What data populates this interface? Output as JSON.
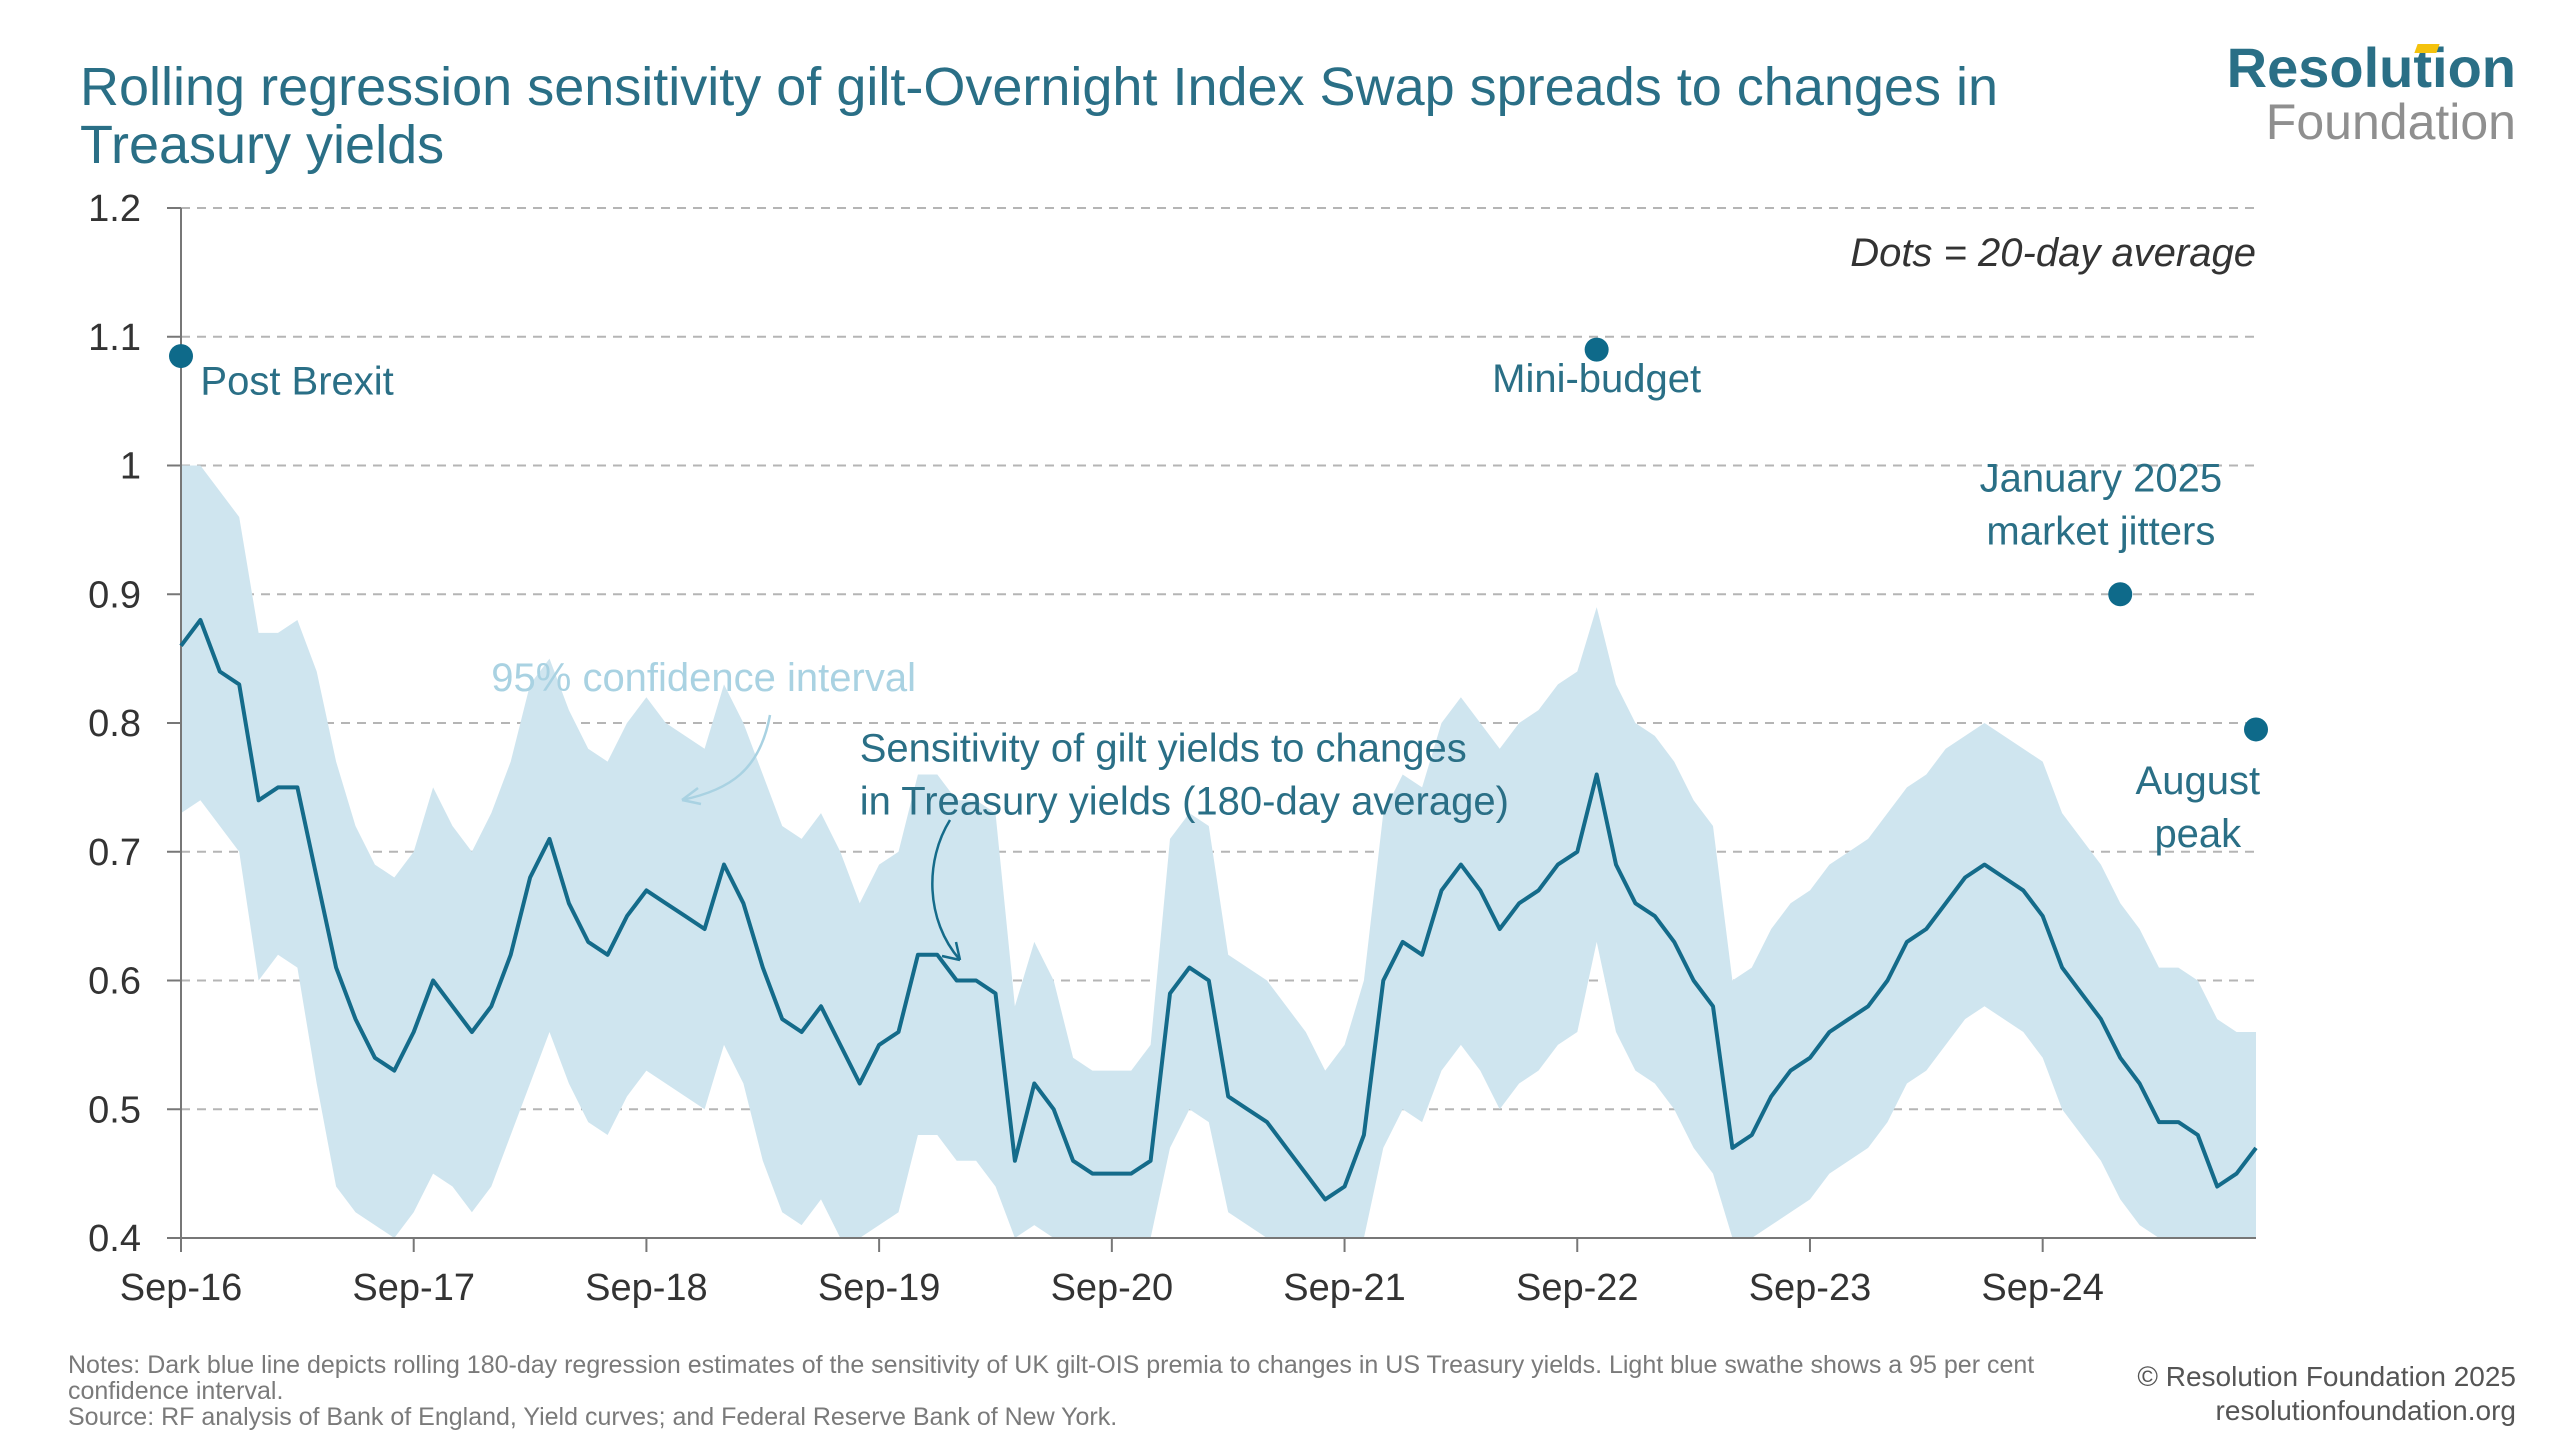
{
  "title": "Rolling regression sensitivity of gilt-Overnight Index Swap spreads to changes in Treasury yields",
  "logo": {
    "line1": "Resolution",
    "line2": "Foundation"
  },
  "notes": {
    "text": "Notes: Dark blue line depicts rolling 180-day regression estimates of the sensitivity of UK gilt-OIS premia to changes in US Treasury yields. Light blue swathe shows a 95 per cent confidence interval.",
    "source": "Source: RF analysis of Bank of England, Yield curves; and Federal Reserve Bank of New York."
  },
  "copyright": {
    "line1": "© Resolution Foundation 2025",
    "line2": "resolutionfoundation.org"
  },
  "colors": {
    "line": "#146b8a",
    "band": "#cfe5ef",
    "dots": "#0e6a8a",
    "grid": "#b5b5b5",
    "title": "#2a6f86"
  },
  "chart_data": {
    "type": "line",
    "ylim": [
      0.4,
      1.2
    ],
    "yticks": [
      "0.4",
      "0.5",
      "0.6",
      "0.7",
      "0.8",
      "0.9",
      "1",
      "1.1",
      "1.2"
    ],
    "xlim": [
      "2016-09",
      "2025-08"
    ],
    "xticks": [
      "Sep-16",
      "Sep-17",
      "Sep-18",
      "Sep-19",
      "Sep-20",
      "Sep-21",
      "Sep-22",
      "Sep-23",
      "Sep-24"
    ],
    "grid": true,
    "series": [
      {
        "kind": "line",
        "points": [
          [
            "2016-09",
            0.86
          ],
          [
            "2016-10",
            0.88
          ],
          [
            "2016-11",
            0.84
          ],
          [
            "2016-12",
            0.83
          ],
          [
            "2017-01",
            0.74
          ],
          [
            "2017-02",
            0.75
          ],
          [
            "2017-03",
            0.75
          ],
          [
            "2017-04",
            0.68
          ],
          [
            "2017-05",
            0.61
          ],
          [
            "2017-06",
            0.57
          ],
          [
            "2017-07",
            0.54
          ],
          [
            "2017-08",
            0.53
          ],
          [
            "2017-09",
            0.56
          ],
          [
            "2017-10",
            0.6
          ],
          [
            "2017-11",
            0.58
          ],
          [
            "2017-12",
            0.56
          ],
          [
            "2018-01",
            0.58
          ],
          [
            "2018-02",
            0.62
          ],
          [
            "2018-03",
            0.68
          ],
          [
            "2018-04",
            0.71
          ],
          [
            "2018-05",
            0.66
          ],
          [
            "2018-06",
            0.63
          ],
          [
            "2018-07",
            0.62
          ],
          [
            "2018-08",
            0.65
          ],
          [
            "2018-09",
            0.67
          ],
          [
            "2018-10",
            0.66
          ],
          [
            "2018-11",
            0.65
          ],
          [
            "2018-12",
            0.64
          ],
          [
            "2019-01",
            0.69
          ],
          [
            "2019-02",
            0.66
          ],
          [
            "2019-03",
            0.61
          ],
          [
            "2019-04",
            0.57
          ],
          [
            "2019-05",
            0.56
          ],
          [
            "2019-06",
            0.58
          ],
          [
            "2019-07",
            0.55
          ],
          [
            "2019-08",
            0.52
          ],
          [
            "2019-09",
            0.55
          ],
          [
            "2019-10",
            0.56
          ],
          [
            "2019-11",
            0.62
          ],
          [
            "2019-12",
            0.62
          ],
          [
            "2020-01",
            0.6
          ],
          [
            "2020-02",
            0.6
          ],
          [
            "2020-03",
            0.59
          ],
          [
            "2020-04",
            0.46
          ],
          [
            "2020-05",
            0.52
          ],
          [
            "2020-06",
            0.5
          ],
          [
            "2020-07",
            0.46
          ],
          [
            "2020-08",
            0.45
          ],
          [
            "2020-09",
            0.45
          ],
          [
            "2020-10",
            0.45
          ],
          [
            "2020-11",
            0.46
          ],
          [
            "2020-12",
            0.59
          ],
          [
            "2021-01",
            0.61
          ],
          [
            "2021-02",
            0.6
          ],
          [
            "2021-03",
            0.51
          ],
          [
            "2021-04",
            0.5
          ],
          [
            "2021-05",
            0.49
          ],
          [
            "2021-06",
            0.47
          ],
          [
            "2021-07",
            0.45
          ],
          [
            "2021-08",
            0.43
          ],
          [
            "2021-09",
            0.44
          ],
          [
            "2021-10",
            0.48
          ],
          [
            "2021-11",
            0.6
          ],
          [
            "2021-12",
            0.63
          ],
          [
            "2022-01",
            0.62
          ],
          [
            "2022-02",
            0.67
          ],
          [
            "2022-03",
            0.69
          ],
          [
            "2022-04",
            0.67
          ],
          [
            "2022-05",
            0.64
          ],
          [
            "2022-06",
            0.66
          ],
          [
            "2022-07",
            0.67
          ],
          [
            "2022-08",
            0.69
          ],
          [
            "2022-09",
            0.7
          ],
          [
            "2022-10",
            0.76
          ],
          [
            "2022-11",
            0.69
          ],
          [
            "2022-12",
            0.66
          ],
          [
            "2023-01",
            0.65
          ],
          [
            "2023-02",
            0.63
          ],
          [
            "2023-03",
            0.6
          ],
          [
            "2023-04",
            0.58
          ],
          [
            "2023-05",
            0.47
          ],
          [
            "2023-06",
            0.48
          ],
          [
            "2023-07",
            0.51
          ],
          [
            "2023-08",
            0.53
          ],
          [
            "2023-09",
            0.54
          ],
          [
            "2023-10",
            0.56
          ],
          [
            "2023-11",
            0.57
          ],
          [
            "2023-12",
            0.58
          ],
          [
            "2024-01",
            0.6
          ],
          [
            "2024-02",
            0.63
          ],
          [
            "2024-03",
            0.64
          ],
          [
            "2024-04",
            0.66
          ],
          [
            "2024-05",
            0.68
          ],
          [
            "2024-06",
            0.69
          ],
          [
            "2024-07",
            0.68
          ],
          [
            "2024-08",
            0.67
          ],
          [
            "2024-09",
            0.65
          ],
          [
            "2024-10",
            0.61
          ],
          [
            "2024-11",
            0.59
          ],
          [
            "2024-12",
            0.57
          ],
          [
            "2025-01",
            0.54
          ],
          [
            "2025-02",
            0.52
          ],
          [
            "2025-03",
            0.49
          ],
          [
            "2025-04",
            0.49
          ],
          [
            "2025-05",
            0.48
          ],
          [
            "2025-06",
            0.44
          ],
          [
            "2025-07",
            0.45
          ],
          [
            "2025-08",
            0.47
          ]
        ]
      },
      {
        "kind": "band",
        "points": [
          [
            "2016-09",
            0.73,
            1.0
          ],
          [
            "2016-10",
            0.74,
            1.0
          ],
          [
            "2016-11",
            0.72,
            0.98
          ],
          [
            "2016-12",
            0.7,
            0.96
          ],
          [
            "2017-01",
            0.6,
            0.87
          ],
          [
            "2017-02",
            0.62,
            0.87
          ],
          [
            "2017-03",
            0.61,
            0.88
          ],
          [
            "2017-04",
            0.52,
            0.84
          ],
          [
            "2017-05",
            0.44,
            0.77
          ],
          [
            "2017-06",
            0.42,
            0.72
          ],
          [
            "2017-07",
            0.41,
            0.69
          ],
          [
            "2017-08",
            0.4,
            0.68
          ],
          [
            "2017-09",
            0.42,
            0.7
          ],
          [
            "2017-10",
            0.45,
            0.75
          ],
          [
            "2017-11",
            0.44,
            0.72
          ],
          [
            "2017-12",
            0.42,
            0.7
          ],
          [
            "2018-01",
            0.44,
            0.73
          ],
          [
            "2018-02",
            0.48,
            0.77
          ],
          [
            "2018-03",
            0.52,
            0.83
          ],
          [
            "2018-04",
            0.56,
            0.85
          ],
          [
            "2018-05",
            0.52,
            0.81
          ],
          [
            "2018-06",
            0.49,
            0.78
          ],
          [
            "2018-07",
            0.48,
            0.77
          ],
          [
            "2018-08",
            0.51,
            0.8
          ],
          [
            "2018-09",
            0.53,
            0.82
          ],
          [
            "2018-10",
            0.52,
            0.8
          ],
          [
            "2018-11",
            0.51,
            0.79
          ],
          [
            "2018-12",
            0.5,
            0.78
          ],
          [
            "2019-01",
            0.55,
            0.83
          ],
          [
            "2019-02",
            0.52,
            0.8
          ],
          [
            "2019-03",
            0.46,
            0.76
          ],
          [
            "2019-04",
            0.42,
            0.72
          ],
          [
            "2019-05",
            0.41,
            0.71
          ],
          [
            "2019-06",
            0.43,
            0.73
          ],
          [
            "2019-07",
            0.4,
            0.7
          ],
          [
            "2019-08",
            0.4,
            0.66
          ],
          [
            "2019-09",
            0.41,
            0.69
          ],
          [
            "2019-10",
            0.42,
            0.7
          ],
          [
            "2019-11",
            0.48,
            0.76
          ],
          [
            "2019-12",
            0.48,
            0.76
          ],
          [
            "2020-01",
            0.46,
            0.74
          ],
          [
            "2020-02",
            0.46,
            0.74
          ],
          [
            "2020-03",
            0.44,
            0.73
          ],
          [
            "2020-04",
            0.4,
            0.58
          ],
          [
            "2020-05",
            0.41,
            0.63
          ],
          [
            "2020-06",
            0.4,
            0.6
          ],
          [
            "2020-07",
            0.4,
            0.54
          ],
          [
            "2020-08",
            0.4,
            0.53
          ],
          [
            "2020-09",
            0.4,
            0.53
          ],
          [
            "2020-10",
            0.4,
            0.53
          ],
          [
            "2020-11",
            0.4,
            0.55
          ],
          [
            "2020-12",
            0.47,
            0.71
          ],
          [
            "2021-01",
            0.5,
            0.73
          ],
          [
            "2021-02",
            0.49,
            0.72
          ],
          [
            "2021-03",
            0.42,
            0.62
          ],
          [
            "2021-04",
            0.41,
            0.61
          ],
          [
            "2021-05",
            0.4,
            0.6
          ],
          [
            "2021-06",
            0.4,
            0.58
          ],
          [
            "2021-07",
            0.4,
            0.56
          ],
          [
            "2021-08",
            0.4,
            0.53
          ],
          [
            "2021-09",
            0.4,
            0.55
          ],
          [
            "2021-10",
            0.4,
            0.6
          ],
          [
            "2021-11",
            0.47,
            0.73
          ],
          [
            "2021-12",
            0.5,
            0.76
          ],
          [
            "2022-01",
            0.49,
            0.75
          ],
          [
            "2022-02",
            0.53,
            0.8
          ],
          [
            "2022-03",
            0.55,
            0.82
          ],
          [
            "2022-04",
            0.53,
            0.8
          ],
          [
            "2022-05",
            0.5,
            0.78
          ],
          [
            "2022-06",
            0.52,
            0.8
          ],
          [
            "2022-07",
            0.53,
            0.81
          ],
          [
            "2022-08",
            0.55,
            0.83
          ],
          [
            "2022-09",
            0.56,
            0.84
          ],
          [
            "2022-10",
            0.63,
            0.89
          ],
          [
            "2022-11",
            0.56,
            0.83
          ],
          [
            "2022-12",
            0.53,
            0.8
          ],
          [
            "2023-01",
            0.52,
            0.79
          ],
          [
            "2023-02",
            0.5,
            0.77
          ],
          [
            "2023-03",
            0.47,
            0.74
          ],
          [
            "2023-04",
            0.45,
            0.72
          ],
          [
            "2023-05",
            0.4,
            0.6
          ],
          [
            "2023-06",
            0.4,
            0.61
          ],
          [
            "2023-07",
            0.41,
            0.64
          ],
          [
            "2023-08",
            0.42,
            0.66
          ],
          [
            "2023-09",
            0.43,
            0.67
          ],
          [
            "2023-10",
            0.45,
            0.69
          ],
          [
            "2023-11",
            0.46,
            0.7
          ],
          [
            "2023-12",
            0.47,
            0.71
          ],
          [
            "2024-01",
            0.49,
            0.73
          ],
          [
            "2024-02",
            0.52,
            0.75
          ],
          [
            "2024-03",
            0.53,
            0.76
          ],
          [
            "2024-04",
            0.55,
            0.78
          ],
          [
            "2024-05",
            0.57,
            0.79
          ],
          [
            "2024-06",
            0.58,
            0.8
          ],
          [
            "2024-07",
            0.57,
            0.79
          ],
          [
            "2024-08",
            0.56,
            0.78
          ],
          [
            "2024-09",
            0.54,
            0.77
          ],
          [
            "2024-10",
            0.5,
            0.73
          ],
          [
            "2024-11",
            0.48,
            0.71
          ],
          [
            "2024-12",
            0.46,
            0.69
          ],
          [
            "2025-01",
            0.43,
            0.66
          ],
          [
            "2025-02",
            0.41,
            0.64
          ],
          [
            "2025-03",
            0.4,
            0.61
          ],
          [
            "2025-04",
            0.4,
            0.61
          ],
          [
            "2025-05",
            0.4,
            0.6
          ],
          [
            "2025-06",
            0.4,
            0.57
          ],
          [
            "2025-07",
            0.4,
            0.56
          ],
          [
            "2025-08",
            0.4,
            0.56
          ]
        ]
      },
      {
        "kind": "dots",
        "points": [
          [
            "2016-09",
            1.085
          ],
          [
            "2022-10",
            1.09
          ],
          [
            "2025-01",
            0.9
          ],
          [
            "2025-08",
            0.795
          ]
        ]
      }
    ],
    "annotations": [
      {
        "id": "post-brexit",
        "lines": [
          "Post Brexit"
        ],
        "x": "2016-10",
        "y": 1.055,
        "anchor": "start",
        "style": "dark"
      },
      {
        "id": "mini-budget",
        "lines": [
          "Mini-budget"
        ],
        "x": "2022-10",
        "y": 1.057,
        "anchor": "middle",
        "style": "dark"
      },
      {
        "id": "jan-2025",
        "lines": [
          "January 2025",
          "market jitters"
        ],
        "x": "2024-12",
        "y": 0.98,
        "anchor": "middle",
        "style": "dark"
      },
      {
        "id": "august-peak",
        "lines": [
          "August",
          "peak"
        ],
        "x": "2025-05",
        "y": 0.745,
        "anchor": "middle",
        "style": "dark"
      },
      {
        "id": "dots-note",
        "lines": [
          "Dots = 20-day average"
        ],
        "x": "2025-08",
        "y": 1.155,
        "anchor": "end",
        "style": "italic"
      },
      {
        "id": "ci-label",
        "lines": [
          "95% confidence interval"
        ],
        "x": "2018-01",
        "y": 0.825,
        "anchor": "start",
        "style": "light"
      },
      {
        "id": "sensitivity-label",
        "lines": [
          "Sensitivity of gilt yields to changes",
          "in Treasury yields (180-day average)"
        ],
        "x": "2019-08",
        "y": 0.77,
        "anchor": "start",
        "style": "dark"
      }
    ]
  }
}
